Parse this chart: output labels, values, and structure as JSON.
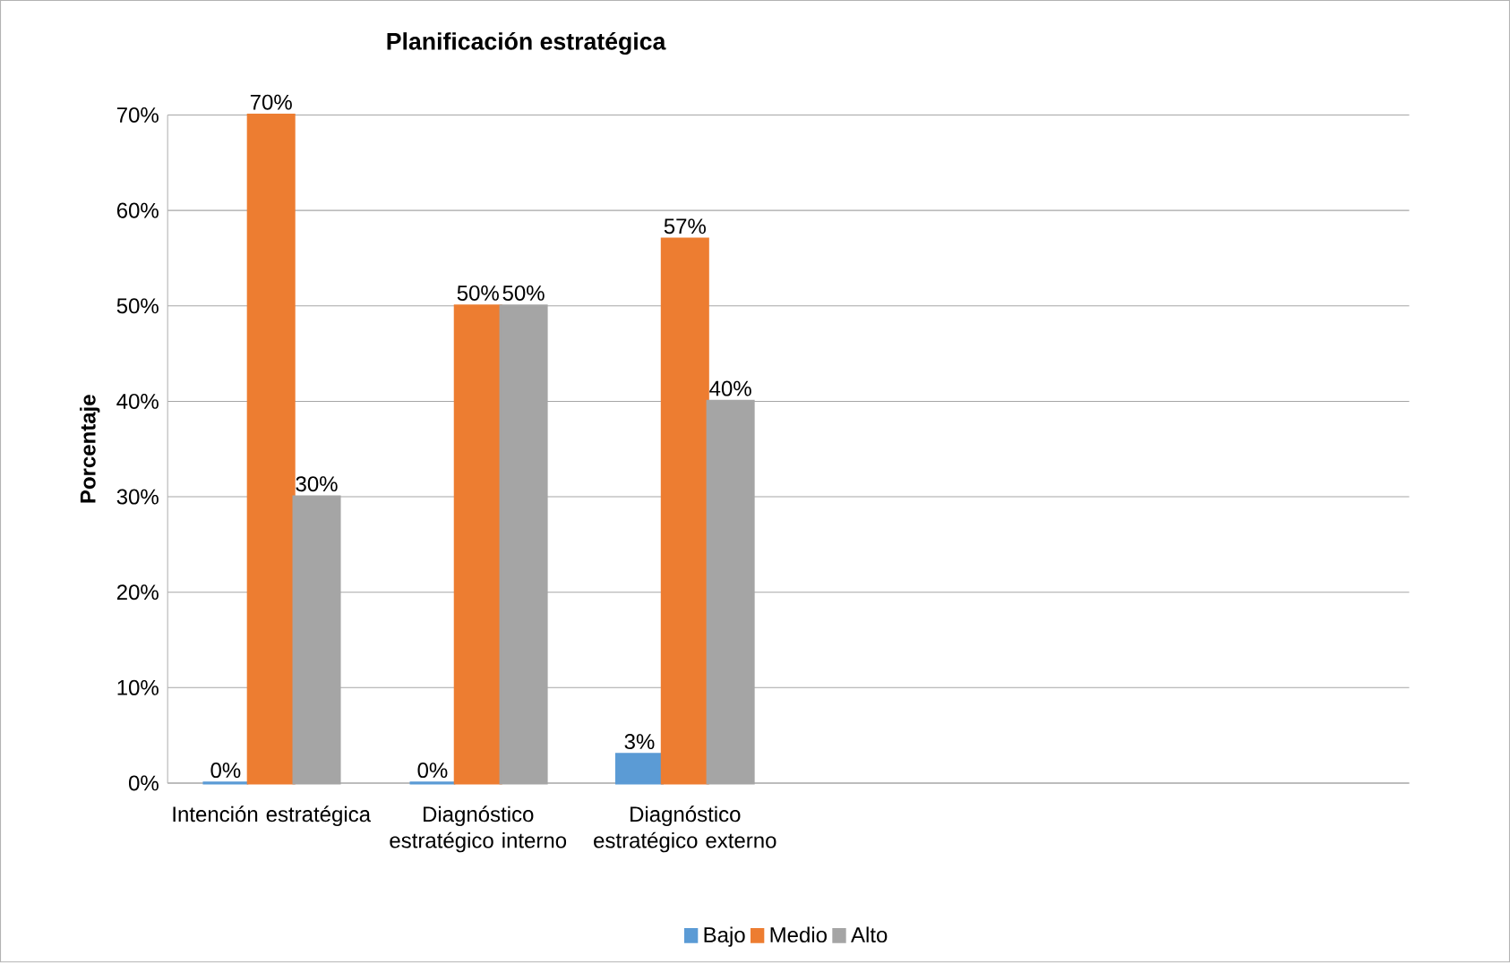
{
  "chart_data": {
    "type": "bar",
    "title": "Planificación estratégica",
    "ylabel": "Porcentaje",
    "categories": [
      "Intención estratégica",
      "Diagnóstico estratégico interno",
      "Diagnóstico estratégico externo",
      null,
      null,
      null
    ],
    "series": [
      {
        "name": "Bajo",
        "color": "#5b9bd5",
        "values": [
          0,
          0,
          3,
          null,
          null,
          null
        ],
        "value_labels": [
          "0%",
          "0%",
          "3%",
          null,
          null,
          null
        ]
      },
      {
        "name": "Medio",
        "color": "#ed7d31",
        "values": [
          70,
          50,
          57,
          null,
          null,
          null
        ],
        "value_labels": [
          "70%",
          "50%",
          "57%",
          null,
          null,
          null
        ]
      },
      {
        "name": "Alto",
        "color": "#a5a5a5",
        "values": [
          30,
          50,
          40,
          null,
          null,
          null
        ],
        "value_labels": [
          "30%",
          "50%",
          "40%",
          null,
          null,
          null
        ]
      }
    ],
    "ylim": [
      0,
      70
    ],
    "yticks": [
      {
        "value": 0,
        "label": "0%"
      },
      {
        "value": 10,
        "label": "10%"
      },
      {
        "value": 20,
        "label": "20%"
      },
      {
        "value": 30,
        "label": "30%"
      },
      {
        "value": 40,
        "label": "40%"
      },
      {
        "value": 50,
        "label": "50%"
      },
      {
        "value": 60,
        "label": "60%"
      },
      {
        "value": 70,
        "label": "70%"
      }
    ],
    "grid": "y",
    "legend": "bottom"
  }
}
